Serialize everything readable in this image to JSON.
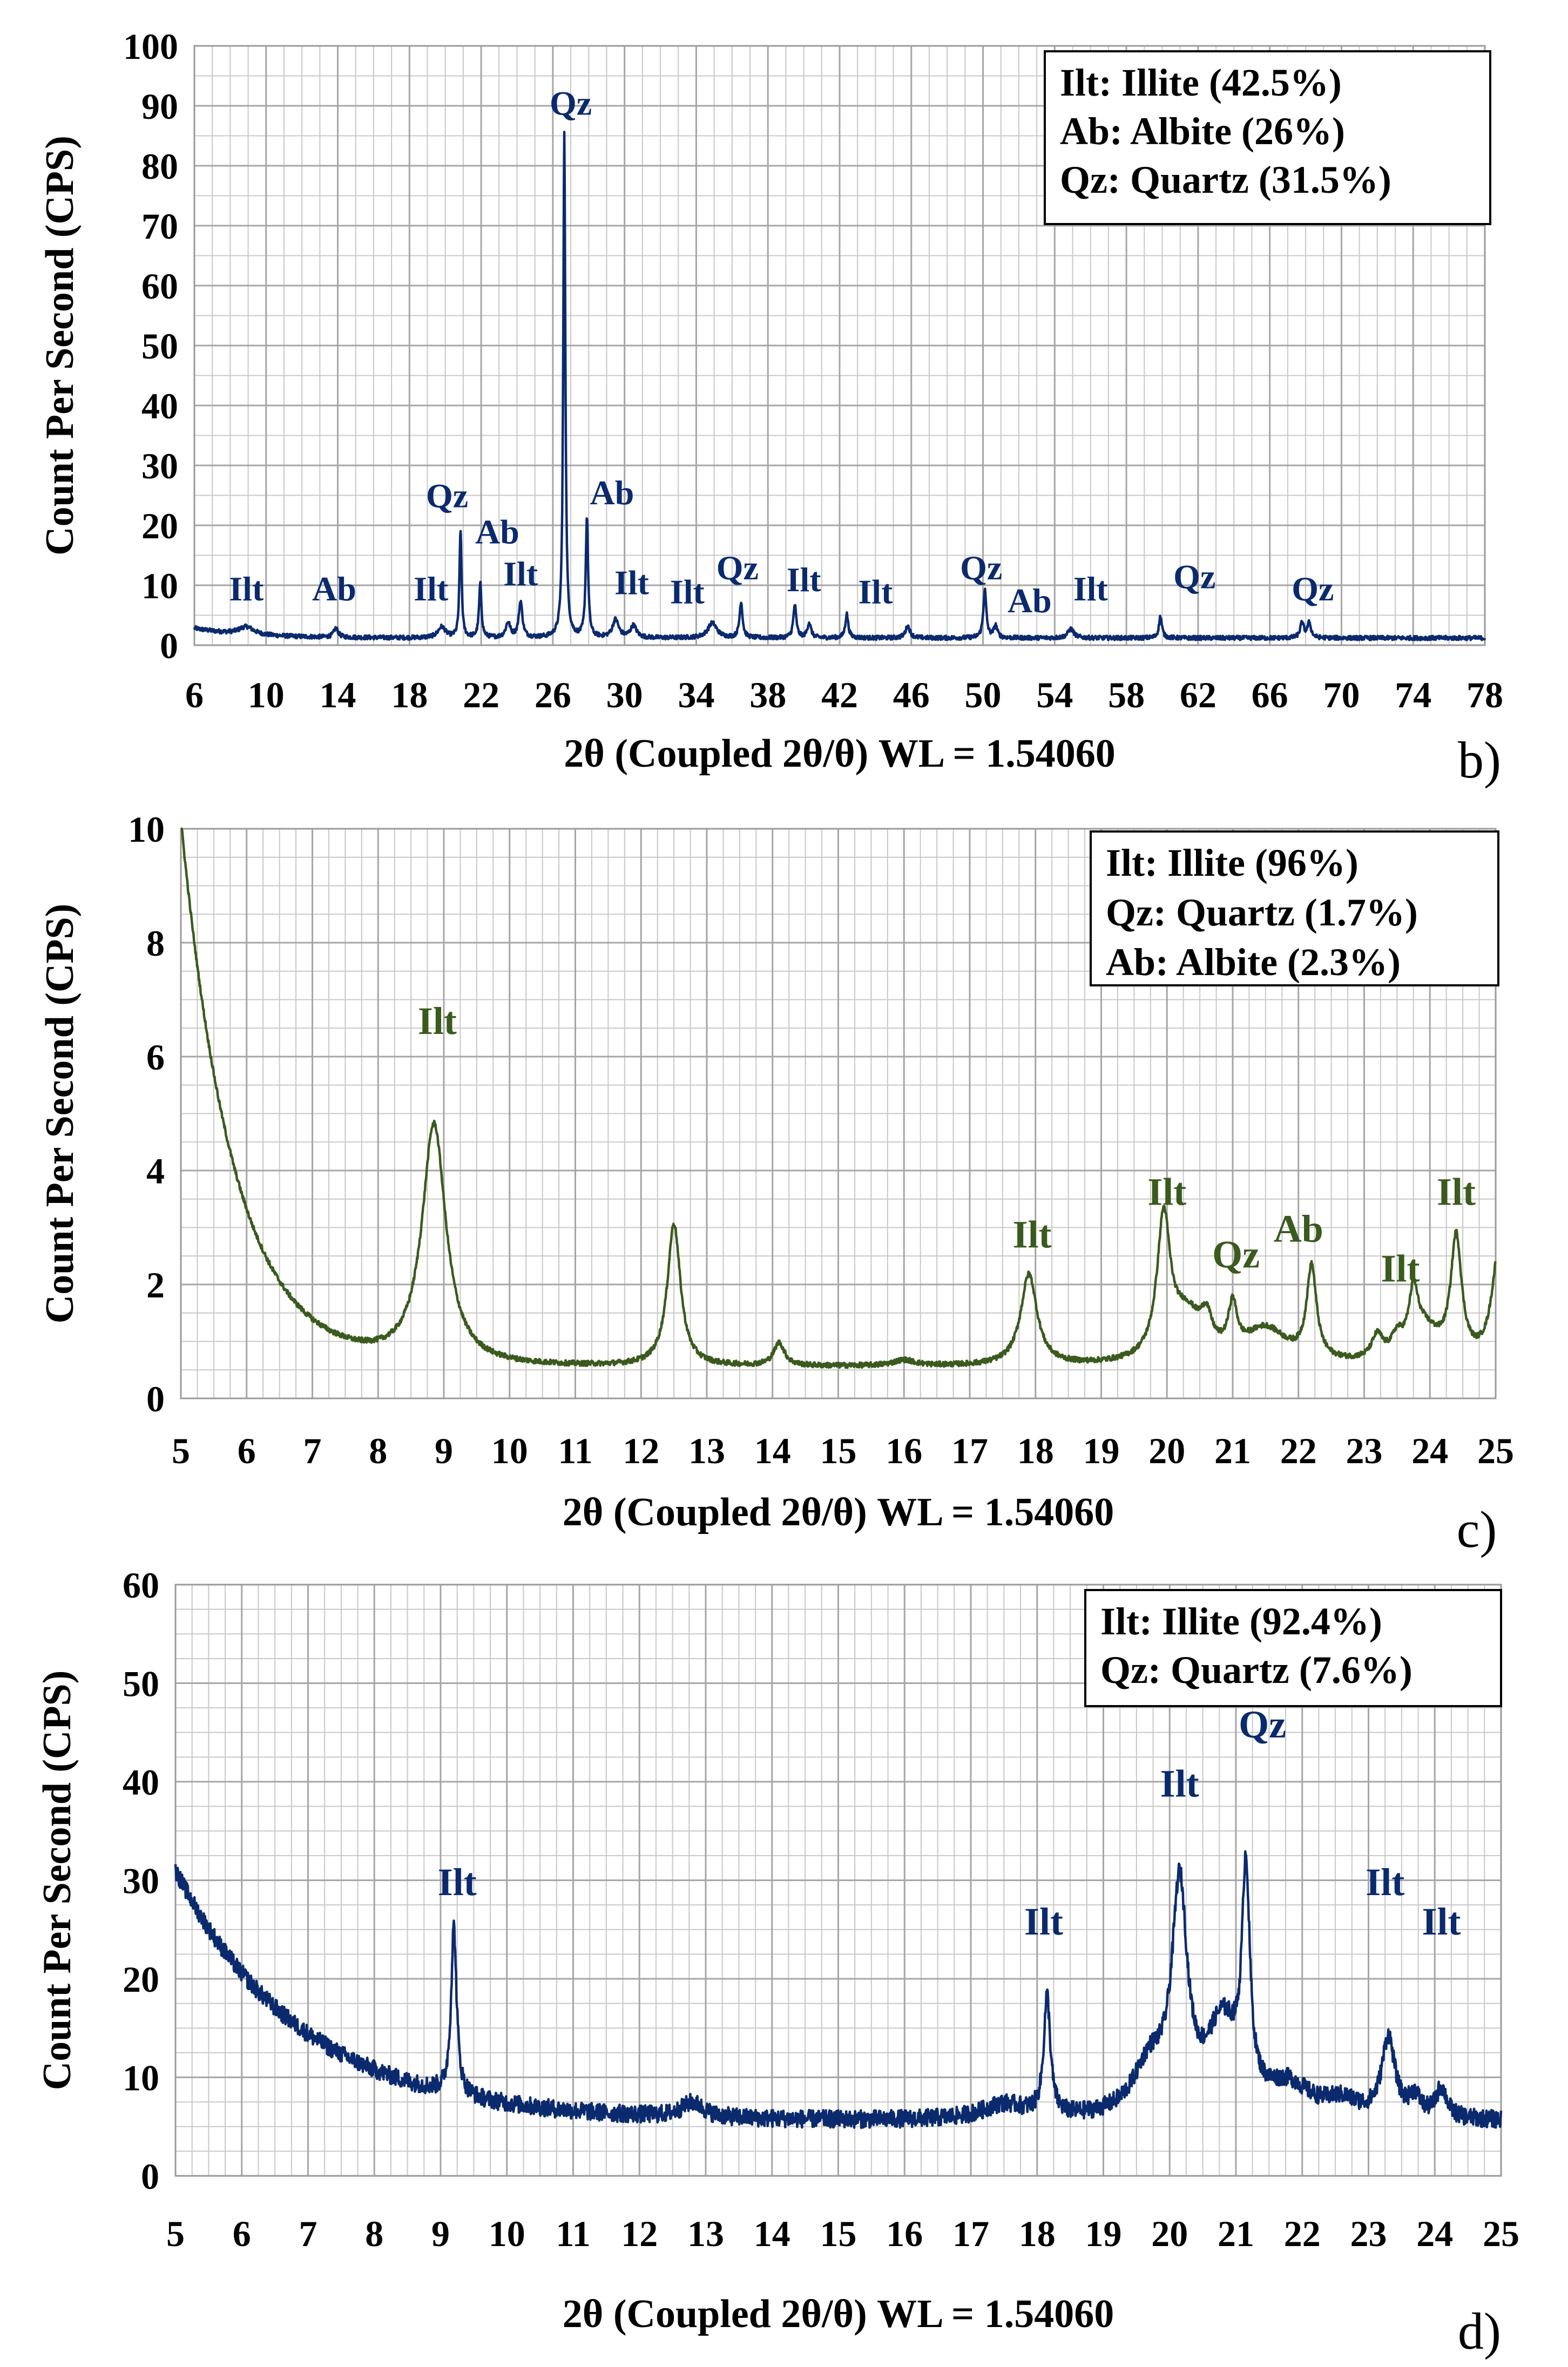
{
  "chart_data": [
    {
      "id": "b",
      "type": "line",
      "panel_label": "b)",
      "xlabel": "2θ (Coupled 2θ/θ) WL = 1.54060",
      "ylabel": "Count Per Second (CPS)",
      "xlim": [
        6,
        78
      ],
      "ylim": [
        0,
        100
      ],
      "xticks": [
        6,
        10,
        14,
        18,
        22,
        26,
        30,
        34,
        38,
        42,
        46,
        50,
        54,
        58,
        62,
        66,
        70,
        74,
        78
      ],
      "tick_labels": [
        "6",
        "10",
        "14",
        "18",
        "22",
        "26",
        "30",
        "34",
        "38",
        "42",
        "46",
        "50",
        "54",
        "58",
        "62",
        "66",
        "70",
        "74",
        "78"
      ],
      "yticks": [
        0,
        10,
        20,
        30,
        40,
        50,
        60,
        70,
        80,
        90,
        100
      ],
      "ytick_labels": [
        "0",
        "10",
        "20",
        "30",
        "40",
        "50",
        "60",
        "70",
        "80",
        "90",
        "100"
      ],
      "grid": true,
      "line_color": "#0b2a6e",
      "legend_position": "top-right",
      "legend": [
        "Ilt: Illite (42.5%)",
        "Ab: Albite (26%)",
        "Qz: Quartz (31.5%)"
      ],
      "baseline": {
        "b0": 1.2,
        "amp": 1.6,
        "decay": 3.0,
        "noise": 0.35
      },
      "peaks": [
        {
          "x": 8.9,
          "h": 1.3,
          "w": 0.5
        },
        {
          "x": 13.9,
          "h": 1.5,
          "w": 0.15
        },
        {
          "x": 19.8,
          "h": 1.8,
          "w": 0.25
        },
        {
          "x": 20.85,
          "h": 18,
          "w": 0.07
        },
        {
          "x": 21.95,
          "h": 9,
          "w": 0.08
        },
        {
          "x": 23.5,
          "h": 2.5,
          "w": 0.15
        },
        {
          "x": 24.2,
          "h": 6,
          "w": 0.12
        },
        {
          "x": 26.64,
          "h": 84,
          "w": 0.07
        },
        {
          "x": 27.9,
          "h": 20,
          "w": 0.08
        },
        {
          "x": 29.5,
          "h": 3,
          "w": 0.2
        },
        {
          "x": 30.5,
          "h": 2,
          "w": 0.2
        },
        {
          "x": 34.9,
          "h": 2.5,
          "w": 0.3
        },
        {
          "x": 36.5,
          "h": 6,
          "w": 0.1
        },
        {
          "x": 39.5,
          "h": 5.5,
          "w": 0.1
        },
        {
          "x": 40.3,
          "h": 2.5,
          "w": 0.12
        },
        {
          "x": 42.4,
          "h": 4,
          "w": 0.1
        },
        {
          "x": 45.8,
          "h": 2,
          "w": 0.15
        },
        {
          "x": 50.1,
          "h": 8,
          "w": 0.1
        },
        {
          "x": 50.7,
          "h": 2,
          "w": 0.12
        },
        {
          "x": 54.9,
          "h": 1.5,
          "w": 0.2
        },
        {
          "x": 59.9,
          "h": 3.6,
          "w": 0.1
        },
        {
          "x": 67.8,
          "h": 2.5,
          "w": 0.12
        },
        {
          "x": 68.2,
          "h": 2.5,
          "w": 0.12
        }
      ],
      "annotations": [
        {
          "label": "Ilt",
          "x": 8.9,
          "y": 7.5
        },
        {
          "label": "Ab",
          "x": 13.8,
          "y": 7.5
        },
        {
          "label": "Ilt",
          "x": 19.2,
          "y": 7.5
        },
        {
          "label": "Qz",
          "x": 20.1,
          "y": 23
        },
        {
          "label": "Ab",
          "x": 22.9,
          "y": 17
        },
        {
          "label": "Ilt",
          "x": 24.2,
          "y": 10
        },
        {
          "label": "Qz",
          "x": 27.0,
          "y": 88.5
        },
        {
          "label": "Ab",
          "x": 29.3,
          "y": 23.5
        },
        {
          "label": "Ilt",
          "x": 30.4,
          "y": 8.5
        },
        {
          "label": "Ilt",
          "x": 33.5,
          "y": 7
        },
        {
          "label": "Qz",
          "x": 36.3,
          "y": 11
        },
        {
          "label": "Ilt",
          "x": 40.0,
          "y": 9
        },
        {
          "label": "Ilt",
          "x": 44.0,
          "y": 7
        },
        {
          "label": "Qz",
          "x": 49.9,
          "y": 11
        },
        {
          "label": "Ab",
          "x": 52.6,
          "y": 5.5
        },
        {
          "label": "Ilt",
          "x": 56.0,
          "y": 7.5
        },
        {
          "label": "Qz",
          "x": 61.8,
          "y": 9.5
        },
        {
          "label": "Qz",
          "x": 68.4,
          "y": 7.5
        }
      ]
    },
    {
      "id": "c",
      "type": "line",
      "panel_label": "c)",
      "xlabel": "2θ (Coupled 2θ/θ) WL = 1.54060",
      "ylabel": "Count Per Second (CPS)",
      "xlim": [
        5,
        25
      ],
      "ylim": [
        0,
        10
      ],
      "xticks": [
        5,
        6,
        7,
        8,
        9,
        10,
        11,
        12,
        13,
        14,
        15,
        16,
        17,
        18,
        19,
        20,
        21,
        22,
        23,
        24,
        25
      ],
      "tick_labels": [
        "5",
        "6",
        "7",
        "8",
        "9",
        "10",
        "11",
        "12",
        "13",
        "14",
        "15",
        "16",
        "17",
        "18",
        "19",
        "20",
        "21",
        "22",
        "23",
        "24",
        "25"
      ],
      "yticks": [
        0,
        2,
        4,
        6,
        8,
        10
      ],
      "ytick_labels": [
        "0",
        "2",
        "4",
        "6",
        "8",
        "10"
      ],
      "grid": true,
      "line_color": "#3a5a1e",
      "legend_position": "top-right",
      "legend": [
        "Ilt: Illite (96%)",
        "Qz: Quartz (1.7%)",
        "Ab: Albite (2.3%)"
      ],
      "baseline": {
        "b0": 0.55,
        "amp": 9.6,
        "decay": 0.8,
        "noise": 0.045
      },
      "peaks": [
        {
          "x": 8.85,
          "h": 4.2,
          "w": 0.22
        },
        {
          "x": 12.5,
          "h": 2.5,
          "w": 0.12
        },
        {
          "x": 14.1,
          "h": 0.4,
          "w": 0.1
        },
        {
          "x": 16.0,
          "h": 0.1,
          "w": 0.2
        },
        {
          "x": 17.9,
          "h": 1.6,
          "w": 0.15
        },
        {
          "x": 19.95,
          "h": 2.4,
          "w": 0.12
        },
        {
          "x": 20.3,
          "h": 0.8,
          "w": 0.3
        },
        {
          "x": 20.6,
          "h": 0.5,
          "w": 0.1
        },
        {
          "x": 21.0,
          "h": 0.8,
          "w": 0.08
        },
        {
          "x": 21.5,
          "h": 0.6,
          "w": 0.4
        },
        {
          "x": 22.2,
          "h": 1.6,
          "w": 0.09
        },
        {
          "x": 23.2,
          "h": 0.4,
          "w": 0.1
        },
        {
          "x": 23.5,
          "h": 0.3,
          "w": 0.1
        },
        {
          "x": 23.75,
          "h": 0.9,
          "w": 0.08
        },
        {
          "x": 23.9,
          "h": 0.6,
          "w": 0.3
        },
        {
          "x": 24.4,
          "h": 2.1,
          "w": 0.1
        },
        {
          "x": 25.05,
          "h": 2.0,
          "w": 0.13
        }
      ],
      "annotations": [
        {
          "label": "Ilt",
          "x": 8.9,
          "y": 6.4
        },
        {
          "label": "Ilt",
          "x": 17.95,
          "y": 2.65
        },
        {
          "label": "Ilt",
          "x": 20.0,
          "y": 3.4
        },
        {
          "label": "Qz",
          "x": 21.05,
          "y": 2.3
        },
        {
          "label": "Ab",
          "x": 22.0,
          "y": 2.75
        },
        {
          "label": "Ilt",
          "x": 23.55,
          "y": 2.05
        },
        {
          "label": "Ilt",
          "x": 24.4,
          "y": 3.4
        }
      ]
    },
    {
      "id": "d",
      "type": "line",
      "panel_label": "d)",
      "xlabel": "2θ (Coupled 2θ/θ) WL = 1.54060",
      "ylabel": "Count Per Second (CPS)",
      "xlim": [
        5,
        25
      ],
      "ylim": [
        0,
        60
      ],
      "xticks": [
        5,
        6,
        7,
        8,
        9,
        10,
        11,
        12,
        13,
        14,
        15,
        16,
        17,
        18,
        19,
        20,
        21,
        22,
        23,
        24,
        25
      ],
      "tick_labels": [
        "5",
        "6",
        "7",
        "8",
        "9",
        "10",
        "11",
        "12",
        "13",
        "14",
        "15",
        "16",
        "17",
        "18",
        "19",
        "20",
        "21",
        "22",
        "23",
        "24",
        "25"
      ],
      "yticks": [
        0,
        10,
        20,
        30,
        40,
        50,
        60
      ],
      "ytick_labels": [
        "0",
        "10",
        "20",
        "30",
        "40",
        "50",
        "60"
      ],
      "grid": true,
      "line_color": "#0b2a6e",
      "legend_position": "top-right",
      "legend": [
        "Ilt: Illite (92.4%)",
        "Qz: Quartz (7.6%)"
      ],
      "baseline": {
        "b0": 5.5,
        "amp": 25.5,
        "decay": 1.9,
        "noise": 0.9
      },
      "peaks": [
        {
          "x": 9.2,
          "h": 17,
          "w": 0.05
        },
        {
          "x": 12.8,
          "h": 1.5,
          "w": 0.2
        },
        {
          "x": 17.5,
          "h": 1.5,
          "w": 0.4
        },
        {
          "x": 18.15,
          "h": 12,
          "w": 0.06
        },
        {
          "x": 19.7,
          "h": 5,
          "w": 0.3
        },
        {
          "x": 20.15,
          "h": 22,
          "w": 0.14
        },
        {
          "x": 20.8,
          "h": 9,
          "w": 0.3
        },
        {
          "x": 21.15,
          "h": 22,
          "w": 0.07
        },
        {
          "x": 21.8,
          "h": 3,
          "w": 0.4
        },
        {
          "x": 22.6,
          "h": 1.5,
          "w": 0.3
        },
        {
          "x": 23.3,
          "h": 8,
          "w": 0.12
        },
        {
          "x": 23.7,
          "h": 2,
          "w": 0.1
        },
        {
          "x": 24.1,
          "h": 3,
          "w": 0.1
        }
      ],
      "annotations": [
        {
          "label": "Ilt",
          "x": 9.25,
          "y": 28.5
        },
        {
          "label": "Ilt",
          "x": 18.1,
          "y": 24.5
        },
        {
          "label": "Ilt",
          "x": 20.15,
          "y": 38.5
        },
        {
          "label": "Qz",
          "x": 21.4,
          "y": 44.5
        },
        {
          "label": "Ilt",
          "x": 23.25,
          "y": 28.5
        },
        {
          "label": "Ilt",
          "x": 24.1,
          "y": 24.5
        }
      ]
    }
  ]
}
